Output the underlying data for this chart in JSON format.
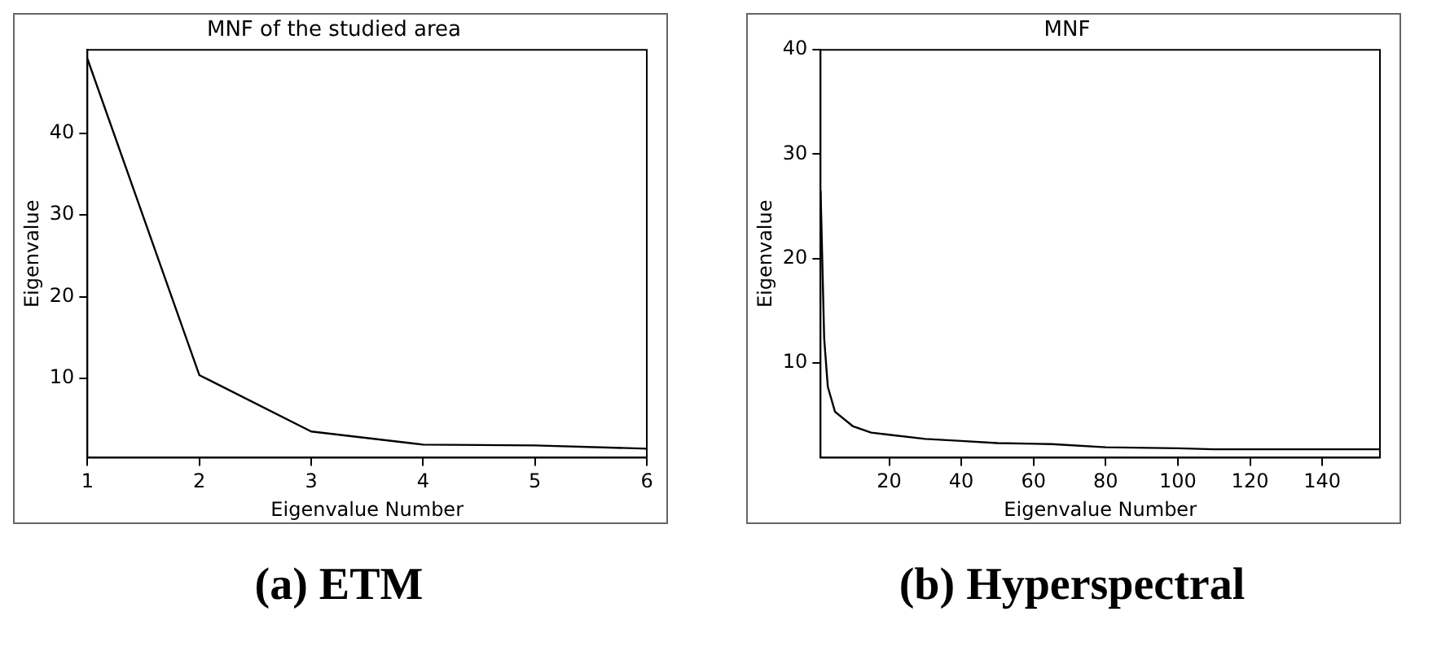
{
  "chart_data": [
    {
      "type": "line",
      "title": "MNF of the studied area",
      "xlabel": "Eigenvalue Number",
      "ylabel": "Eigenvalue",
      "annotations": [
        "(a) ETM"
      ],
      "x": [
        1,
        2,
        3,
        4,
        5,
        6
      ],
      "series": [
        {
          "color": "#000000",
          "values": [
            49.1,
            10.4,
            3.5,
            1.9,
            1.8,
            1.4
          ]
        }
      ],
      "xlim": [
        1,
        6
      ],
      "xticks": [
        1,
        2,
        3,
        4,
        5,
        6
      ],
      "ylim": [
        0.3,
        50.2
      ],
      "yticks": [
        10,
        20,
        30,
        40
      ],
      "marker": "none"
    },
    {
      "type": "line",
      "title": "MNF",
      "xlabel": "Eigenvalue Number",
      "ylabel": "Eigenvalue",
      "annotations": [
        "(b) Hyperspectral"
      ],
      "x": [
        1,
        2,
        3,
        5,
        10,
        15,
        20,
        30,
        40,
        50,
        65,
        80,
        100,
        110,
        156
      ],
      "series": [
        {
          "color": "#000000",
          "values": [
            26.5,
            12.3,
            7.7,
            5.3,
            3.9,
            3.3,
            3.1,
            2.7,
            2.5,
            2.3,
            2.2,
            1.9,
            1.8,
            1.7,
            1.7
          ]
        }
      ],
      "xlim": [
        1,
        156
      ],
      "xticks": [
        20,
        40,
        60,
        80,
        100,
        120,
        140
      ],
      "ylim": [
        0.9,
        40
      ],
      "yticks": [
        10,
        20,
        30,
        40
      ],
      "marker": "none"
    }
  ]
}
